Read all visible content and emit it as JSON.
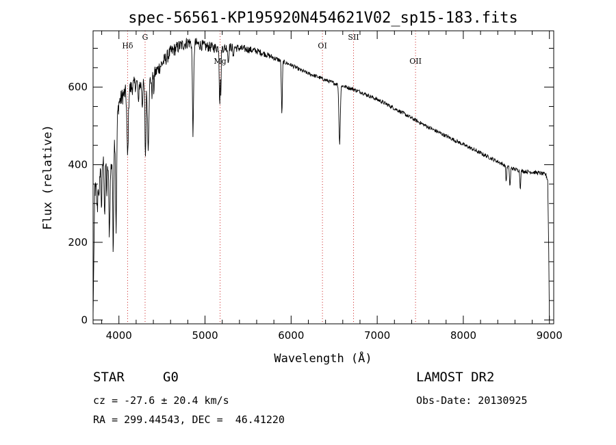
{
  "chart_data": {
    "type": "line",
    "title": "spec-56561-KP195920N454621V02_sp15-183.fits",
    "xlabel": "Wavelength (Å)",
    "ylabel": "Flux (relative)",
    "xlim": [
      3700,
      9050
    ],
    "ylim": [
      -10,
      745
    ],
    "xticks_major": [
      4000,
      5000,
      6000,
      7000,
      8000,
      9000
    ],
    "xtick_labels": [
      "4000",
      "5000",
      "6000",
      "7000",
      "8000",
      "9000"
    ],
    "yticks_major": [
      0,
      200,
      400,
      600
    ],
    "ytick_labels": [
      "0",
      "200",
      "400",
      "600"
    ],
    "series": [
      {
        "name": "spectrum",
        "continuum": [
          [
            3700,
            340
          ],
          [
            3780,
            400
          ],
          [
            3850,
            420
          ],
          [
            3900,
            380
          ],
          [
            3960,
            480
          ],
          [
            4000,
            560
          ],
          [
            4050,
            580
          ],
          [
            4100,
            590
          ],
          [
            4150,
            600
          ],
          [
            4200,
            610
          ],
          [
            4300,
            600
          ],
          [
            4400,
            630
          ],
          [
            4500,
            660
          ],
          [
            4600,
            690
          ],
          [
            4700,
            705
          ],
          [
            4800,
            715
          ],
          [
            4900,
            712
          ],
          [
            5000,
            705
          ],
          [
            5100,
            702
          ],
          [
            5200,
            700
          ],
          [
            5300,
            703
          ],
          [
            5400,
            700
          ],
          [
            5500,
            697
          ],
          [
            5600,
            693
          ],
          [
            5700,
            685
          ],
          [
            5800,
            675
          ],
          [
            5900,
            666
          ],
          [
            6000,
            657
          ],
          [
            6100,
            645
          ],
          [
            6200,
            635
          ],
          [
            6300,
            627
          ],
          [
            6400,
            618
          ],
          [
            6500,
            610
          ],
          [
            6600,
            603
          ],
          [
            6700,
            596
          ],
          [
            6800,
            588
          ],
          [
            6900,
            578
          ],
          [
            7000,
            568
          ],
          [
            7100,
            557
          ],
          [
            7200,
            545
          ],
          [
            7300,
            533
          ],
          [
            7400,
            520
          ],
          [
            7500,
            508
          ],
          [
            7600,
            496
          ],
          [
            7700,
            485
          ],
          [
            7800,
            474
          ],
          [
            7900,
            463
          ],
          [
            8000,
            452
          ],
          [
            8100,
            441
          ],
          [
            8200,
            430
          ],
          [
            8300,
            419
          ],
          [
            8400,
            408
          ],
          [
            8500,
            396
          ],
          [
            8600,
            388
          ],
          [
            8700,
            383
          ],
          [
            8800,
            381
          ],
          [
            8900,
            378
          ],
          [
            8960,
            374
          ],
          [
            8980,
            360
          ]
        ],
        "absorption_features": [
          [
            3734,
            30,
            12
          ],
          [
            3750,
            80,
            6
          ],
          [
            3770,
            90,
            5
          ],
          [
            3798,
            110,
            6
          ],
          [
            3835,
            140,
            6
          ],
          [
            3860,
            90,
            5
          ],
          [
            3889,
            160,
            6
          ],
          [
            3933,
            260,
            5
          ],
          [
            3968,
            260,
            6
          ],
          [
            4101,
            170,
            8
          ],
          [
            4226,
            60,
            4
          ],
          [
            4271,
            50,
            4
          ],
          [
            4308,
            180,
            6
          ],
          [
            4340,
            160,
            8
          ],
          [
            4383,
            50,
            4
          ],
          [
            4405,
            40,
            4
          ],
          [
            4861,
            230,
            7
          ],
          [
            5167,
            80,
            4
          ],
          [
            5173,
            100,
            4
          ],
          [
            5184,
            110,
            4
          ],
          [
            5270,
            40,
            5
          ],
          [
            5328,
            30,
            4
          ],
          [
            5890,
            90,
            5
          ],
          [
            5896,
            80,
            4
          ],
          [
            6563,
            150,
            8
          ],
          [
            8498,
            40,
            5
          ],
          [
            8542,
            50,
            5
          ],
          [
            8662,
            45,
            5
          ]
        ],
        "noise_amplitude_blue": 26,
        "noise_amplitude_red": 5,
        "red_end_drop": [
          [
            8980,
            360
          ],
          [
            8992,
            180
          ],
          [
            9000,
            0
          ]
        ]
      }
    ],
    "lines": [
      {
        "label": "Hδ",
        "wavelength": 4101,
        "label_flux": 700
      },
      {
        "label": "G",
        "wavelength": 4304,
        "label_flux": 722
      },
      {
        "label": "Mg",
        "wavelength": 5175,
        "label_flux": 660
      },
      {
        "label": "OI",
        "wavelength": 6364,
        "label_flux": 700
      },
      {
        "label": "SII",
        "wavelength": 6725,
        "label_flux": 722
      },
      {
        "label": "OII",
        "wavelength": 7445,
        "label_flux": 660
      }
    ],
    "line_marker_color": "#cc2222",
    "line_color": "#000000",
    "legend": "none",
    "grid": false
  },
  "info": {
    "class": "STAR",
    "subclass": "G0",
    "survey": "LAMOST DR2",
    "cz": "cz = -27.6 ± 20.4 km/s",
    "obs_date": "Obs-Date: 20130925",
    "coords": "RA = 299.44543, DEC =  46.41220"
  }
}
